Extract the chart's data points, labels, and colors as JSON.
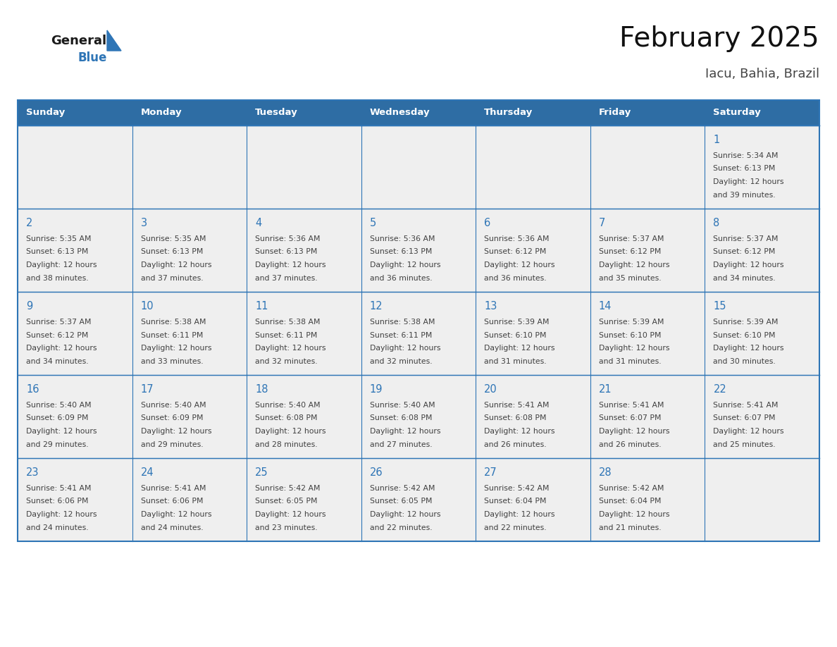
{
  "title": "February 2025",
  "subtitle": "Iacu, Bahia, Brazil",
  "days_of_week": [
    "Sunday",
    "Monday",
    "Tuesday",
    "Wednesday",
    "Thursday",
    "Friday",
    "Saturday"
  ],
  "header_bg": "#2E6DA4",
  "header_text": "#FFFFFF",
  "cell_bg": "#EFEFEF",
  "border_color": "#2E75B6",
  "day_num_color": "#2E75B6",
  "text_color": "#404040",
  "logo_general_color": "#1a1a1a",
  "logo_blue_color": "#2E75B6",
  "title_color": "#111111",
  "subtitle_color": "#444444",
  "calendar_data": [
    [
      null,
      null,
      null,
      null,
      null,
      null,
      {
        "day": 1,
        "sunrise": "5:34 AM",
        "sunset": "6:13 PM",
        "daylight_hours": 12,
        "daylight_minutes": 39
      }
    ],
    [
      {
        "day": 2,
        "sunrise": "5:35 AM",
        "sunset": "6:13 PM",
        "daylight_hours": 12,
        "daylight_minutes": 38
      },
      {
        "day": 3,
        "sunrise": "5:35 AM",
        "sunset": "6:13 PM",
        "daylight_hours": 12,
        "daylight_minutes": 37
      },
      {
        "day": 4,
        "sunrise": "5:36 AM",
        "sunset": "6:13 PM",
        "daylight_hours": 12,
        "daylight_minutes": 37
      },
      {
        "day": 5,
        "sunrise": "5:36 AM",
        "sunset": "6:13 PM",
        "daylight_hours": 12,
        "daylight_minutes": 36
      },
      {
        "day": 6,
        "sunrise": "5:36 AM",
        "sunset": "6:12 PM",
        "daylight_hours": 12,
        "daylight_minutes": 36
      },
      {
        "day": 7,
        "sunrise": "5:37 AM",
        "sunset": "6:12 PM",
        "daylight_hours": 12,
        "daylight_minutes": 35
      },
      {
        "day": 8,
        "sunrise": "5:37 AM",
        "sunset": "6:12 PM",
        "daylight_hours": 12,
        "daylight_minutes": 34
      }
    ],
    [
      {
        "day": 9,
        "sunrise": "5:37 AM",
        "sunset": "6:12 PM",
        "daylight_hours": 12,
        "daylight_minutes": 34
      },
      {
        "day": 10,
        "sunrise": "5:38 AM",
        "sunset": "6:11 PM",
        "daylight_hours": 12,
        "daylight_minutes": 33
      },
      {
        "day": 11,
        "sunrise": "5:38 AM",
        "sunset": "6:11 PM",
        "daylight_hours": 12,
        "daylight_minutes": 32
      },
      {
        "day": 12,
        "sunrise": "5:38 AM",
        "sunset": "6:11 PM",
        "daylight_hours": 12,
        "daylight_minutes": 32
      },
      {
        "day": 13,
        "sunrise": "5:39 AM",
        "sunset": "6:10 PM",
        "daylight_hours": 12,
        "daylight_minutes": 31
      },
      {
        "day": 14,
        "sunrise": "5:39 AM",
        "sunset": "6:10 PM",
        "daylight_hours": 12,
        "daylight_minutes": 31
      },
      {
        "day": 15,
        "sunrise": "5:39 AM",
        "sunset": "6:10 PM",
        "daylight_hours": 12,
        "daylight_minutes": 30
      }
    ],
    [
      {
        "day": 16,
        "sunrise": "5:40 AM",
        "sunset": "6:09 PM",
        "daylight_hours": 12,
        "daylight_minutes": 29
      },
      {
        "day": 17,
        "sunrise": "5:40 AM",
        "sunset": "6:09 PM",
        "daylight_hours": 12,
        "daylight_minutes": 29
      },
      {
        "day": 18,
        "sunrise": "5:40 AM",
        "sunset": "6:08 PM",
        "daylight_hours": 12,
        "daylight_minutes": 28
      },
      {
        "day": 19,
        "sunrise": "5:40 AM",
        "sunset": "6:08 PM",
        "daylight_hours": 12,
        "daylight_minutes": 27
      },
      {
        "day": 20,
        "sunrise": "5:41 AM",
        "sunset": "6:08 PM",
        "daylight_hours": 12,
        "daylight_minutes": 26
      },
      {
        "day": 21,
        "sunrise": "5:41 AM",
        "sunset": "6:07 PM",
        "daylight_hours": 12,
        "daylight_minutes": 26
      },
      {
        "day": 22,
        "sunrise": "5:41 AM",
        "sunset": "6:07 PM",
        "daylight_hours": 12,
        "daylight_minutes": 25
      }
    ],
    [
      {
        "day": 23,
        "sunrise": "5:41 AM",
        "sunset": "6:06 PM",
        "daylight_hours": 12,
        "daylight_minutes": 24
      },
      {
        "day": 24,
        "sunrise": "5:41 AM",
        "sunset": "6:06 PM",
        "daylight_hours": 12,
        "daylight_minutes": 24
      },
      {
        "day": 25,
        "sunrise": "5:42 AM",
        "sunset": "6:05 PM",
        "daylight_hours": 12,
        "daylight_minutes": 23
      },
      {
        "day": 26,
        "sunrise": "5:42 AM",
        "sunset": "6:05 PM",
        "daylight_hours": 12,
        "daylight_minutes": 22
      },
      {
        "day": 27,
        "sunrise": "5:42 AM",
        "sunset": "6:04 PM",
        "daylight_hours": 12,
        "daylight_minutes": 22
      },
      {
        "day": 28,
        "sunrise": "5:42 AM",
        "sunset": "6:04 PM",
        "daylight_hours": 12,
        "daylight_minutes": 21
      },
      null
    ]
  ]
}
